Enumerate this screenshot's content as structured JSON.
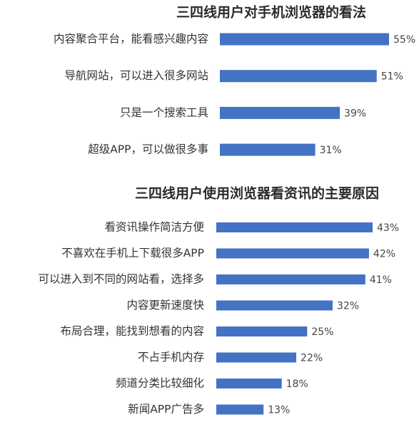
{
  "chart_data": [
    {
      "type": "bar",
      "orientation": "horizontal",
      "title": "三四线用户对手机浏览器的看法",
      "categories": [
        "内容聚合平台，能看感兴趣内容",
        "导航网站，可以进入很多网站",
        "只是一个搜索工具",
        "超级APP，可以做很多事"
      ],
      "values": [
        55,
        51,
        39,
        31
      ],
      "value_labels": [
        "55%",
        "51%",
        "39%",
        "31%"
      ],
      "color": "#4472c4"
    },
    {
      "type": "bar",
      "orientation": "horizontal",
      "title": "三四线用户使用浏览器看资讯的主要原因",
      "categories": [
        "看资讯操作简洁方便",
        "不喜欢在手机上下载很多APP",
        "可以进入到不同的网站看，选择多",
        "内容更新速度快",
        "布局合理，能找到想看的内容",
        "不占手机内存",
        "频道分类比较细化",
        "新闻APP广告多"
      ],
      "values": [
        43,
        42,
        41,
        32,
        25,
        22,
        18,
        13
      ],
      "value_labels": [
        "43%",
        "42%",
        "41%",
        "32%",
        "25%",
        "22%",
        "18%",
        "13%"
      ],
      "color": "#4472c4"
    }
  ]
}
